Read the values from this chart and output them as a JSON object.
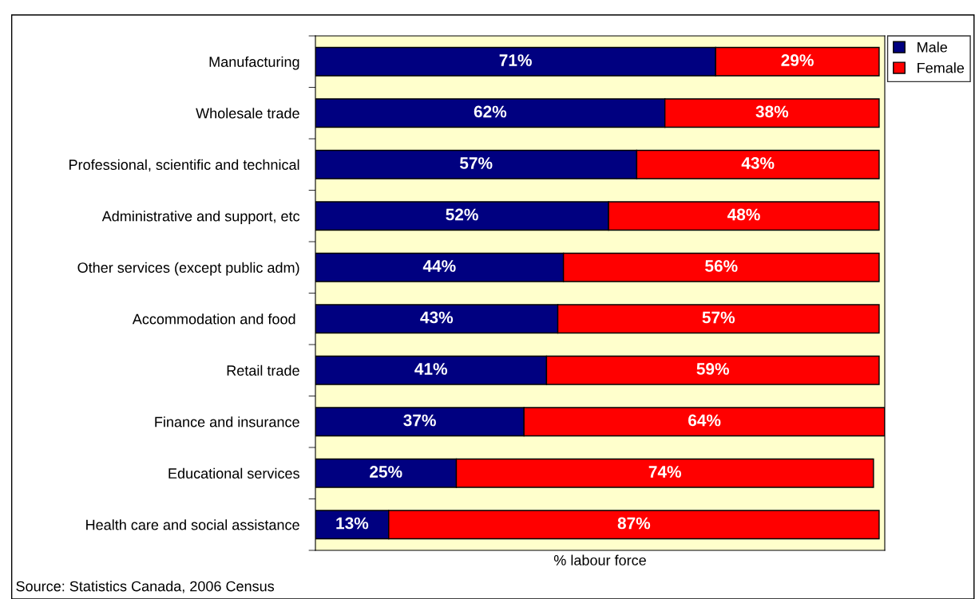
{
  "chart_data": {
    "type": "bar",
    "orientation": "horizontal",
    "stacked": true,
    "legend": "top right",
    "grid": false,
    "xlabel": "% labour force",
    "categories": [
      "Manufacturing",
      "Wholesale trade",
      "Professional, scientific and technical",
      "Administrative and support, etc",
      "Other services (except public adm)",
      "Accommodation and food ",
      "Retail trade",
      "Finance and insurance",
      "Educational services",
      "Health care and social assistance"
    ],
    "series": [
      {
        "name": "Male",
        "color": "#000080",
        "values": [
          71,
          62,
          57,
          52,
          44,
          43,
          41,
          37,
          25,
          13
        ],
        "value_labels": [
          "71%",
          "62%",
          "57%",
          "52%",
          "44%",
          "43%",
          "41%",
          "37%",
          "25%",
          "13%"
        ]
      },
      {
        "name": "Female",
        "color": "#ff0000",
        "values": [
          29,
          38,
          43,
          48,
          56,
          57,
          59,
          64,
          74,
          87
        ],
        "value_labels": [
          "29%",
          "38%",
          "43%",
          "48%",
          "56%",
          "57%",
          "59%",
          "64%",
          "74%",
          "87%"
        ]
      }
    ],
    "annotations": [
      "Source: Statistics Canada, 2006 Census"
    ]
  }
}
